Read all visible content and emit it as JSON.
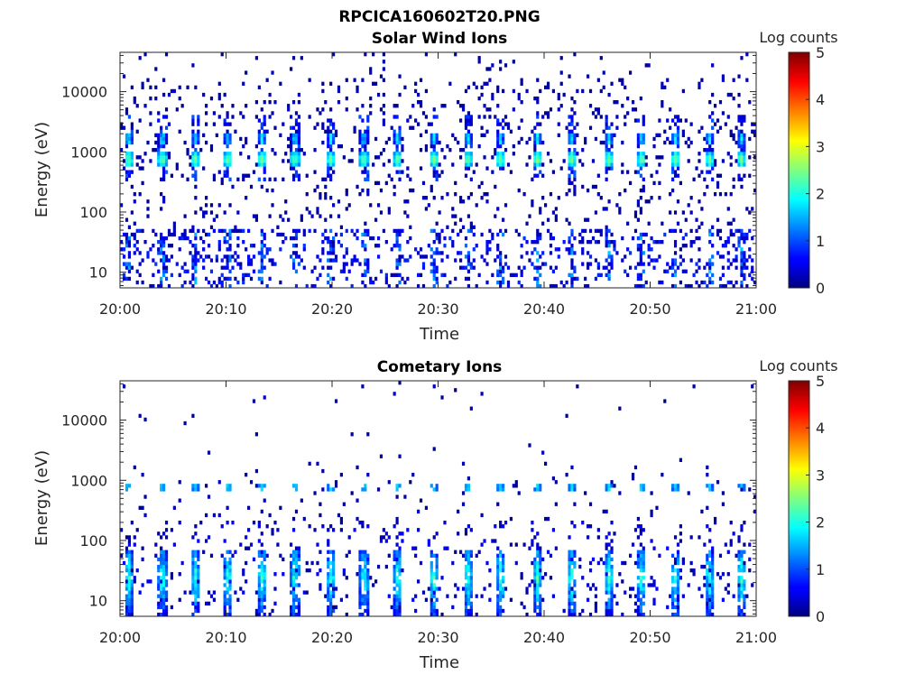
{
  "figure_title": "RPCICA160602T20.PNG",
  "chart_data": [
    {
      "type": "heatmap",
      "title": "Solar Wind Ions",
      "xlabel": "Time",
      "ylabel": "Energy (eV)",
      "x_ticks": [
        "20:00",
        "20:10",
        "20:20",
        "20:30",
        "20:40",
        "20:50",
        "21:00"
      ],
      "x_range_minutes": [
        0,
        60
      ],
      "y_scale": "log",
      "y_range_eV": [
        5.5,
        45000
      ],
      "y_ticks": [
        10,
        100,
        1000,
        10000
      ],
      "y_tick_labels": [
        "10",
        "100",
        "1000",
        "10000"
      ],
      "colorbar": {
        "title": "Log counts",
        "range": [
          0,
          5
        ],
        "ticks": [
          "0",
          "1",
          "2",
          "3",
          "4",
          "5"
        ],
        "colormap": "jet"
      },
      "features": {
        "solar_wind_pulse_times_min": [
          0.8,
          4.0,
          7.1,
          10.2,
          13.4,
          16.5,
          19.9,
          23.0,
          26.2,
          29.6,
          32.8,
          35.9,
          39.4,
          42.6,
          46.1,
          49.2,
          52.4,
          55.6,
          58.6
        ],
        "peak_energy_eV": 750,
        "secondary_energy_eV": 1700,
        "peak_log_counts": 2.6,
        "low_energy_band_eV": [
          6,
          50
        ],
        "background": "sparse single counts across all energies"
      }
    },
    {
      "type": "heatmap",
      "title": "Cometary Ions",
      "xlabel": "Time",
      "ylabel": "Energy (eV)",
      "x_ticks": [
        "20:00",
        "20:10",
        "20:20",
        "20:30",
        "20:40",
        "20:50",
        "21:00"
      ],
      "x_range_minutes": [
        0,
        60
      ],
      "y_scale": "log",
      "y_range_eV": [
        5.5,
        45000
      ],
      "y_ticks": [
        10,
        100,
        1000,
        10000
      ],
      "y_tick_labels": [
        "10",
        "100",
        "1000",
        "10000"
      ],
      "colorbar": {
        "title": "Log counts",
        "range": [
          0,
          5
        ],
        "ticks": [
          "0",
          "1",
          "2",
          "3",
          "4",
          "5"
        ],
        "colormap": "jet"
      },
      "features": {
        "pulse_times_min": [
          0.8,
          4.0,
          7.1,
          10.2,
          13.4,
          16.5,
          19.9,
          23.0,
          26.2,
          29.6,
          32.8,
          35.9,
          39.4,
          42.6,
          46.1,
          49.2,
          52.4,
          55.6,
          58.6
        ],
        "cometary_band_eV": [
          10,
          60
        ],
        "cometary_peak_log_counts": 2.2,
        "weak_band_eV": 750,
        "background": "sparse counts, mostly below 200 eV"
      }
    }
  ]
}
